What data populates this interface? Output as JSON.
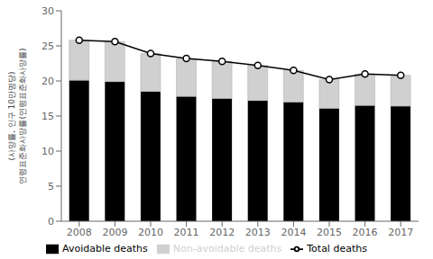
{
  "chart_data": {
    "type": "bar",
    "stacked": true,
    "categories": [
      "2008",
      "2009",
      "2010",
      "2011",
      "2012",
      "2013",
      "2014",
      "2015",
      "2016",
      "2017"
    ],
    "series": [
      {
        "name": "Avoidable deaths",
        "type": "bar",
        "color": "#000000",
        "values": [
          20.1,
          19.9,
          18.5,
          17.8,
          17.5,
          17.2,
          17.0,
          16.1,
          16.5,
          16.4
        ]
      },
      {
        "name": "Non-avoidable deaths",
        "type": "bar",
        "color": "#d0d0d0",
        "values": [
          5.7,
          5.7,
          5.4,
          5.4,
          5.3,
          5.0,
          4.5,
          4.1,
          4.5,
          4.4
        ]
      },
      {
        "name": "Total deaths",
        "type": "line",
        "color": "#000000",
        "marker": "circle",
        "values": [
          25.8,
          25.6,
          23.9,
          23.2,
          22.8,
          22.2,
          21.5,
          20.2,
          21.0,
          20.8
        ]
      }
    ],
    "ylabel": "(사망률, 인구 10만명당)\n연령표준화사망률(연령표준화사망률)",
    "ylim": [
      0,
      30
    ],
    "yticks": [
      0,
      5,
      10,
      15,
      20,
      25,
      30
    ],
    "grid": false,
    "legend": "bottom"
  }
}
